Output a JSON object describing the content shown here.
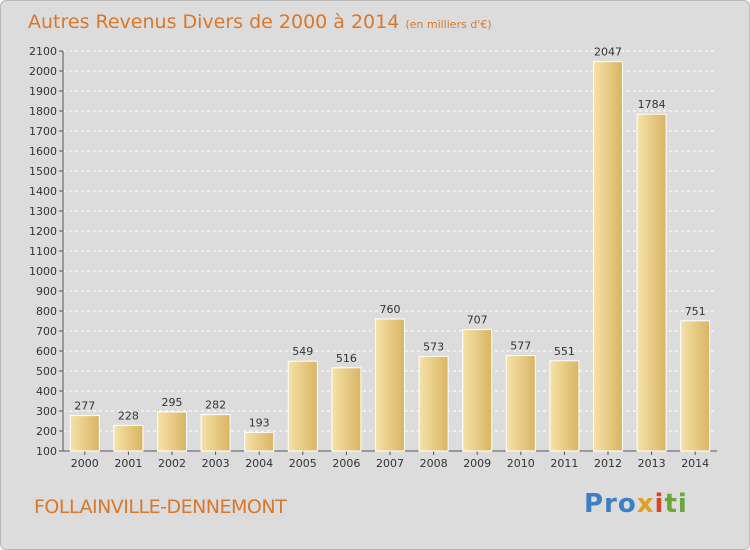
{
  "chart_data": {
    "type": "bar",
    "title": "Autres Revenus Divers de 2000 à 2014",
    "subtitle": "(en milliers d'€)",
    "categories": [
      "2000",
      "2001",
      "2002",
      "2003",
      "2004",
      "2005",
      "2006",
      "2007",
      "2008",
      "2009",
      "2010",
      "2011",
      "2012",
      "2013",
      "2014"
    ],
    "values": [
      277,
      228,
      295,
      282,
      193,
      549,
      516,
      760,
      573,
      707,
      577,
      551,
      2047,
      1784,
      751
    ],
    "ylim": [
      100,
      2100
    ],
    "yticks": [
      100,
      200,
      300,
      400,
      500,
      600,
      700,
      800,
      900,
      1000,
      1100,
      1200,
      1300,
      1400,
      1500,
      1600,
      1700,
      1800,
      1900,
      2000,
      2100
    ],
    "grid": true,
    "bar_color": "#e8cd86"
  },
  "footer": {
    "place_name": "FOLLAINVILLE-DENNEMONT",
    "brand": [
      "Pro",
      "x",
      "i",
      "ti"
    ]
  }
}
